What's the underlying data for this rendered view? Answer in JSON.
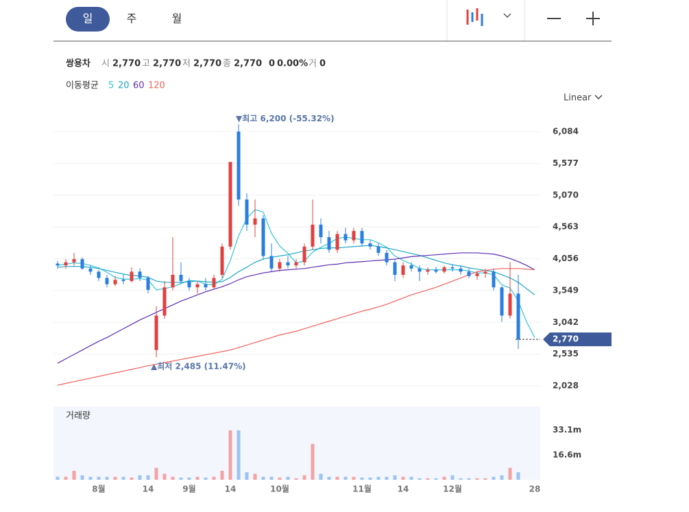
{
  "header": {
    "periods": [
      "일",
      "주",
      "월"
    ]
  },
  "quote": {
    "name": "쌍용차",
    "fields": [
      {
        "label": "시",
        "value": "2,770"
      },
      {
        "label": "고",
        "value": "2,770"
      },
      {
        "label": "저",
        "value": "2,770"
      },
      {
        "label": "종",
        "value": "2,770"
      }
    ],
    "change": "0",
    "change_pct": "0.00%",
    "volume_label": "거",
    "volume": "0"
  },
  "chart_data": {
    "type": "candlestick",
    "scale": "Linear",
    "categories": [
      null,
      null,
      null,
      null,
      null,
      "8월",
      null,
      null,
      null,
      null,
      null,
      "14",
      null,
      null,
      null,
      null,
      "9월",
      null,
      null,
      null,
      null,
      "14",
      null,
      null,
      null,
      null,
      null,
      "10월",
      null,
      null,
      null,
      null,
      null,
      null,
      null,
      null,
      null,
      "11월",
      null,
      null,
      null,
      null,
      "14",
      null,
      null,
      null,
      null,
      null,
      "12월",
      null,
      null,
      null,
      null,
      null,
      null,
      null,
      null,
      null,
      "28"
    ],
    "ohlc": [
      [
        3980,
        4020,
        3900,
        3950
      ],
      [
        3950,
        4050,
        3900,
        4000
      ],
      [
        4000,
        4150,
        3950,
        4050
      ],
      [
        4050,
        4080,
        3880,
        3900
      ],
      [
        3900,
        3950,
        3800,
        3850
      ],
      [
        3850,
        3880,
        3700,
        3750
      ],
      [
        3750,
        3800,
        3600,
        3650
      ],
      [
        3650,
        3780,
        3620,
        3720
      ],
      [
        3720,
        3800,
        3650,
        3700
      ],
      [
        3700,
        3920,
        3680,
        3850
      ],
      [
        3850,
        3900,
        3700,
        3750
      ],
      [
        3750,
        3780,
        3500,
        3560
      ],
      [
        2600,
        3300,
        2485,
        3150
      ],
      [
        3150,
        3700,
        3100,
        3600
      ],
      [
        3600,
        4400,
        3550,
        3800
      ],
      [
        3800,
        4000,
        3650,
        3700
      ],
      [
        3700,
        3750,
        3550,
        3600
      ],
      [
        3600,
        3700,
        3500,
        3650
      ],
      [
        3650,
        3750,
        3550,
        3600
      ],
      [
        3600,
        3800,
        3580,
        3750
      ],
      [
        3800,
        4300,
        3750,
        4250
      ],
      [
        4250,
        5600,
        4200,
        5600
      ],
      [
        6084,
        6200,
        4900,
        5000
      ],
      [
        5000,
        5100,
        4500,
        4600
      ],
      [
        4600,
        5000,
        4400,
        4700
      ],
      [
        4700,
        4750,
        4050,
        4100
      ],
      [
        4100,
        4300,
        3850,
        3900
      ],
      [
        3900,
        4050,
        3850,
        4000
      ],
      [
        4000,
        4100,
        3900,
        3950
      ],
      [
        3950,
        4050,
        3900,
        4000
      ],
      [
        4000,
        4300,
        3950,
        4250
      ],
      [
        4250,
        5000,
        4200,
        4600
      ],
      [
        4600,
        4700,
        4300,
        4400
      ],
      [
        4400,
        4500,
        4150,
        4200
      ],
      [
        4200,
        4500,
        4150,
        4450
      ],
      [
        4450,
        4550,
        4300,
        4350
      ],
      [
        4350,
        4550,
        4300,
        4500
      ],
      [
        4500,
        4550,
        4250,
        4300
      ],
      [
        4300,
        4350,
        4200,
        4250
      ],
      [
        4250,
        4300,
        4100,
        4150
      ],
      [
        4150,
        4200,
        3950,
        4000
      ],
      [
        4000,
        4050,
        3700,
        3800
      ],
      [
        3800,
        4000,
        3750,
        3950
      ],
      [
        3950,
        4000,
        3850,
        3900
      ],
      [
        3900,
        3950,
        3700,
        3850
      ],
      [
        3850,
        3920,
        3800,
        3880
      ],
      [
        3880,
        3930,
        3820,
        3850
      ],
      [
        3850,
        3950,
        3820,
        3920
      ],
      [
        3920,
        3970,
        3850,
        3900
      ],
      [
        3900,
        3950,
        3800,
        3850
      ],
      [
        3850,
        3900,
        3750,
        3780
      ],
      [
        3780,
        3850,
        3720,
        3820
      ],
      [
        3820,
        3900,
        3750,
        3850
      ],
      [
        3850,
        3900,
        3550,
        3600
      ],
      [
        3600,
        3620,
        3050,
        3150
      ],
      [
        3150,
        4000,
        3100,
        3500
      ],
      [
        3500,
        3800,
        2620,
        2770
      ],
      null,
      null
    ],
    "up_color": "#e0403f",
    "down_color": "#2a7de1",
    "ylim": [
      1788,
      6543
    ],
    "yticks": [
      {
        "value": 6084,
        "label": "6,084"
      },
      {
        "value": 5577,
        "label": "5,577"
      },
      {
        "value": 5070,
        "label": "5,070"
      },
      {
        "value": 4563,
        "label": "4,563"
      },
      {
        "value": 4056,
        "label": "4,056"
      },
      {
        "value": 3549,
        "label": "3,549"
      },
      {
        "value": 3042,
        "label": "3,042"
      },
      {
        "value": 2535,
        "label": "2,535"
      },
      {
        "value": 2028,
        "label": "2,028"
      }
    ],
    "grid": true,
    "annotations": [
      {
        "text": "▼최고 6,200 (-55.32%)",
        "value": 6200
      },
      {
        "text": "▲최저 2,485 (11.47%)",
        "value": 2485
      }
    ],
    "last_price": {
      "value": 2770,
      "label": "2,770"
    },
    "moving_average": {
      "name": "이동평균",
      "series": [
        {
          "name": "5",
          "color": "#2fc3d5",
          "values": [
            3950,
            3970,
            3990,
            3980,
            3950,
            3910,
            3840,
            3760,
            3730,
            3730,
            3740,
            3720,
            3560,
            3580,
            3610,
            3660,
            3710,
            3700,
            3650,
            3640,
            3730,
            4030,
            4420,
            4700,
            4840,
            4800,
            4460,
            4260,
            4140,
            3990,
            4020,
            4160,
            4240,
            4300,
            4380,
            4400,
            4380,
            4360,
            4360,
            4310,
            4240,
            4100,
            4030,
            3970,
            3900,
            3880,
            3880,
            3880,
            3880,
            3880,
            3860,
            3830,
            3830,
            3800,
            3640,
            3590,
            3380,
            3050,
            2800
          ]
        },
        {
          "name": "20",
          "color": "#1aa6c2",
          "values": [
            3920,
            3930,
            3935,
            3930,
            3920,
            3900,
            3870,
            3840,
            3810,
            3790,
            3780,
            3760,
            3700,
            3680,
            3680,
            3680,
            3690,
            3700,
            3690,
            3680,
            3690,
            3760,
            3850,
            3920,
            4000,
            4050,
            4080,
            4100,
            4120,
            4150,
            4180,
            4200,
            4220,
            4230,
            4230,
            4240,
            4250,
            4260,
            4270,
            4250,
            4230,
            4200,
            4170,
            4140,
            4110,
            4070,
            4030,
            3990,
            3960,
            3940,
            3910,
            3890,
            3870,
            3850,
            3800,
            3750,
            3680,
            3580,
            3480
          ]
        },
        {
          "name": "60",
          "color": "#5a2cb0",
          "values": [
            2390,
            2460,
            2530,
            2600,
            2670,
            2740,
            2800,
            2870,
            2940,
            3010,
            3080,
            3140,
            3200,
            3260,
            3320,
            3380,
            3430,
            3480,
            3530,
            3570,
            3610,
            3660,
            3720,
            3770,
            3800,
            3830,
            3850,
            3870,
            3880,
            3890,
            3900,
            3920,
            3940,
            3960,
            3970,
            3990,
            4000,
            4010,
            4020,
            4030,
            4040,
            4050,
            4070,
            4090,
            4100,
            4110,
            4120,
            4130,
            4140,
            4150,
            4150,
            4150,
            4140,
            4130,
            4100,
            4060,
            4010,
            3950,
            3880
          ]
        },
        {
          "name": "120",
          "color": "#f0605a",
          "values": [
            2040,
            2068,
            2096,
            2124,
            2152,
            2180,
            2208,
            2236,
            2264,
            2292,
            2320,
            2350,
            2375,
            2400,
            2425,
            2450,
            2475,
            2500,
            2525,
            2550,
            2575,
            2600,
            2640,
            2680,
            2720,
            2760,
            2800,
            2840,
            2870,
            2900,
            2940,
            2980,
            3020,
            3060,
            3100,
            3140,
            3180,
            3220,
            3250,
            3290,
            3330,
            3380,
            3430,
            3480,
            3520,
            3560,
            3600,
            3650,
            3700,
            3750,
            3800,
            3850,
            3870,
            3890,
            3900,
            3900,
            3900,
            3890,
            3880
          ]
        }
      ]
    },
    "volume": {
      "name": "거래량",
      "up_color": "#f3a3a3",
      "down_color": "#9cc4ef",
      "ylim": [
        0,
        49000000
      ],
      "yticks": [
        {
          "value": 33100000,
          "label": "33.1m"
        },
        {
          "value": 16600000,
          "label": "16.6m"
        }
      ],
      "values": [
        2000000,
        2000000,
        6000000,
        3000000,
        2000000,
        2000000,
        2000000,
        2000000,
        2000000,
        1500000,
        3000000,
        3000000,
        8000000,
        4000000,
        2000000,
        1500000,
        1500000,
        2000000,
        1500000,
        2000000,
        6000000,
        33000000,
        33000000,
        5000000,
        4000000,
        2000000,
        2000000,
        1500000,
        2000000,
        1000000,
        3000000,
        24000000,
        4000000,
        2000000,
        2000000,
        2000000,
        2000000,
        1500000,
        1500000,
        2000000,
        2000000,
        3000000,
        2000000,
        2000000,
        1000000,
        1000000,
        1000000,
        2000000,
        3000000,
        1000000,
        1000000,
        1000000,
        1000000,
        2000000,
        3000000,
        8000000,
        5000000,
        null,
        null
      ]
    }
  }
}
